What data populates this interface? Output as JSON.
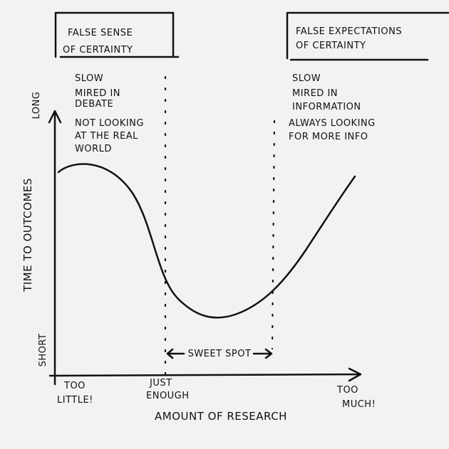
{
  "boxes": [
    {
      "lines": [
        "FALSE SENSE",
        "OF CERTAINTY"
      ]
    },
    {
      "lines": [
        "FALSE EXPECTATIONS",
        "OF CERTAINTY"
      ]
    }
  ],
  "left_notes": [
    [
      "SLOW"
    ],
    [
      "MIRED IN",
      "DEBATE"
    ],
    [
      "NOT LOOKING",
      "AT THE REAL",
      "WORLD"
    ]
  ],
  "right_notes": [
    [
      "SLOW"
    ],
    [
      "MIRED IN",
      "INFORMATION"
    ],
    [
      "ALWAYS LOOKING",
      "FOR MORE INFO"
    ]
  ],
  "y_axis": {
    "title": "TIME TO OUTCOMES",
    "top": "LONG",
    "bottom": "SHORT"
  },
  "x_axis": {
    "title": "AMOUNT OF RESEARCH",
    "labels": [
      [
        "TOO",
        "LITTLE!"
      ],
      [
        "JUST",
        "ENOUGH"
      ],
      [
        "TOO",
        "MUCH!"
      ]
    ]
  },
  "sweet_spot": "SWEET SPOT"
}
